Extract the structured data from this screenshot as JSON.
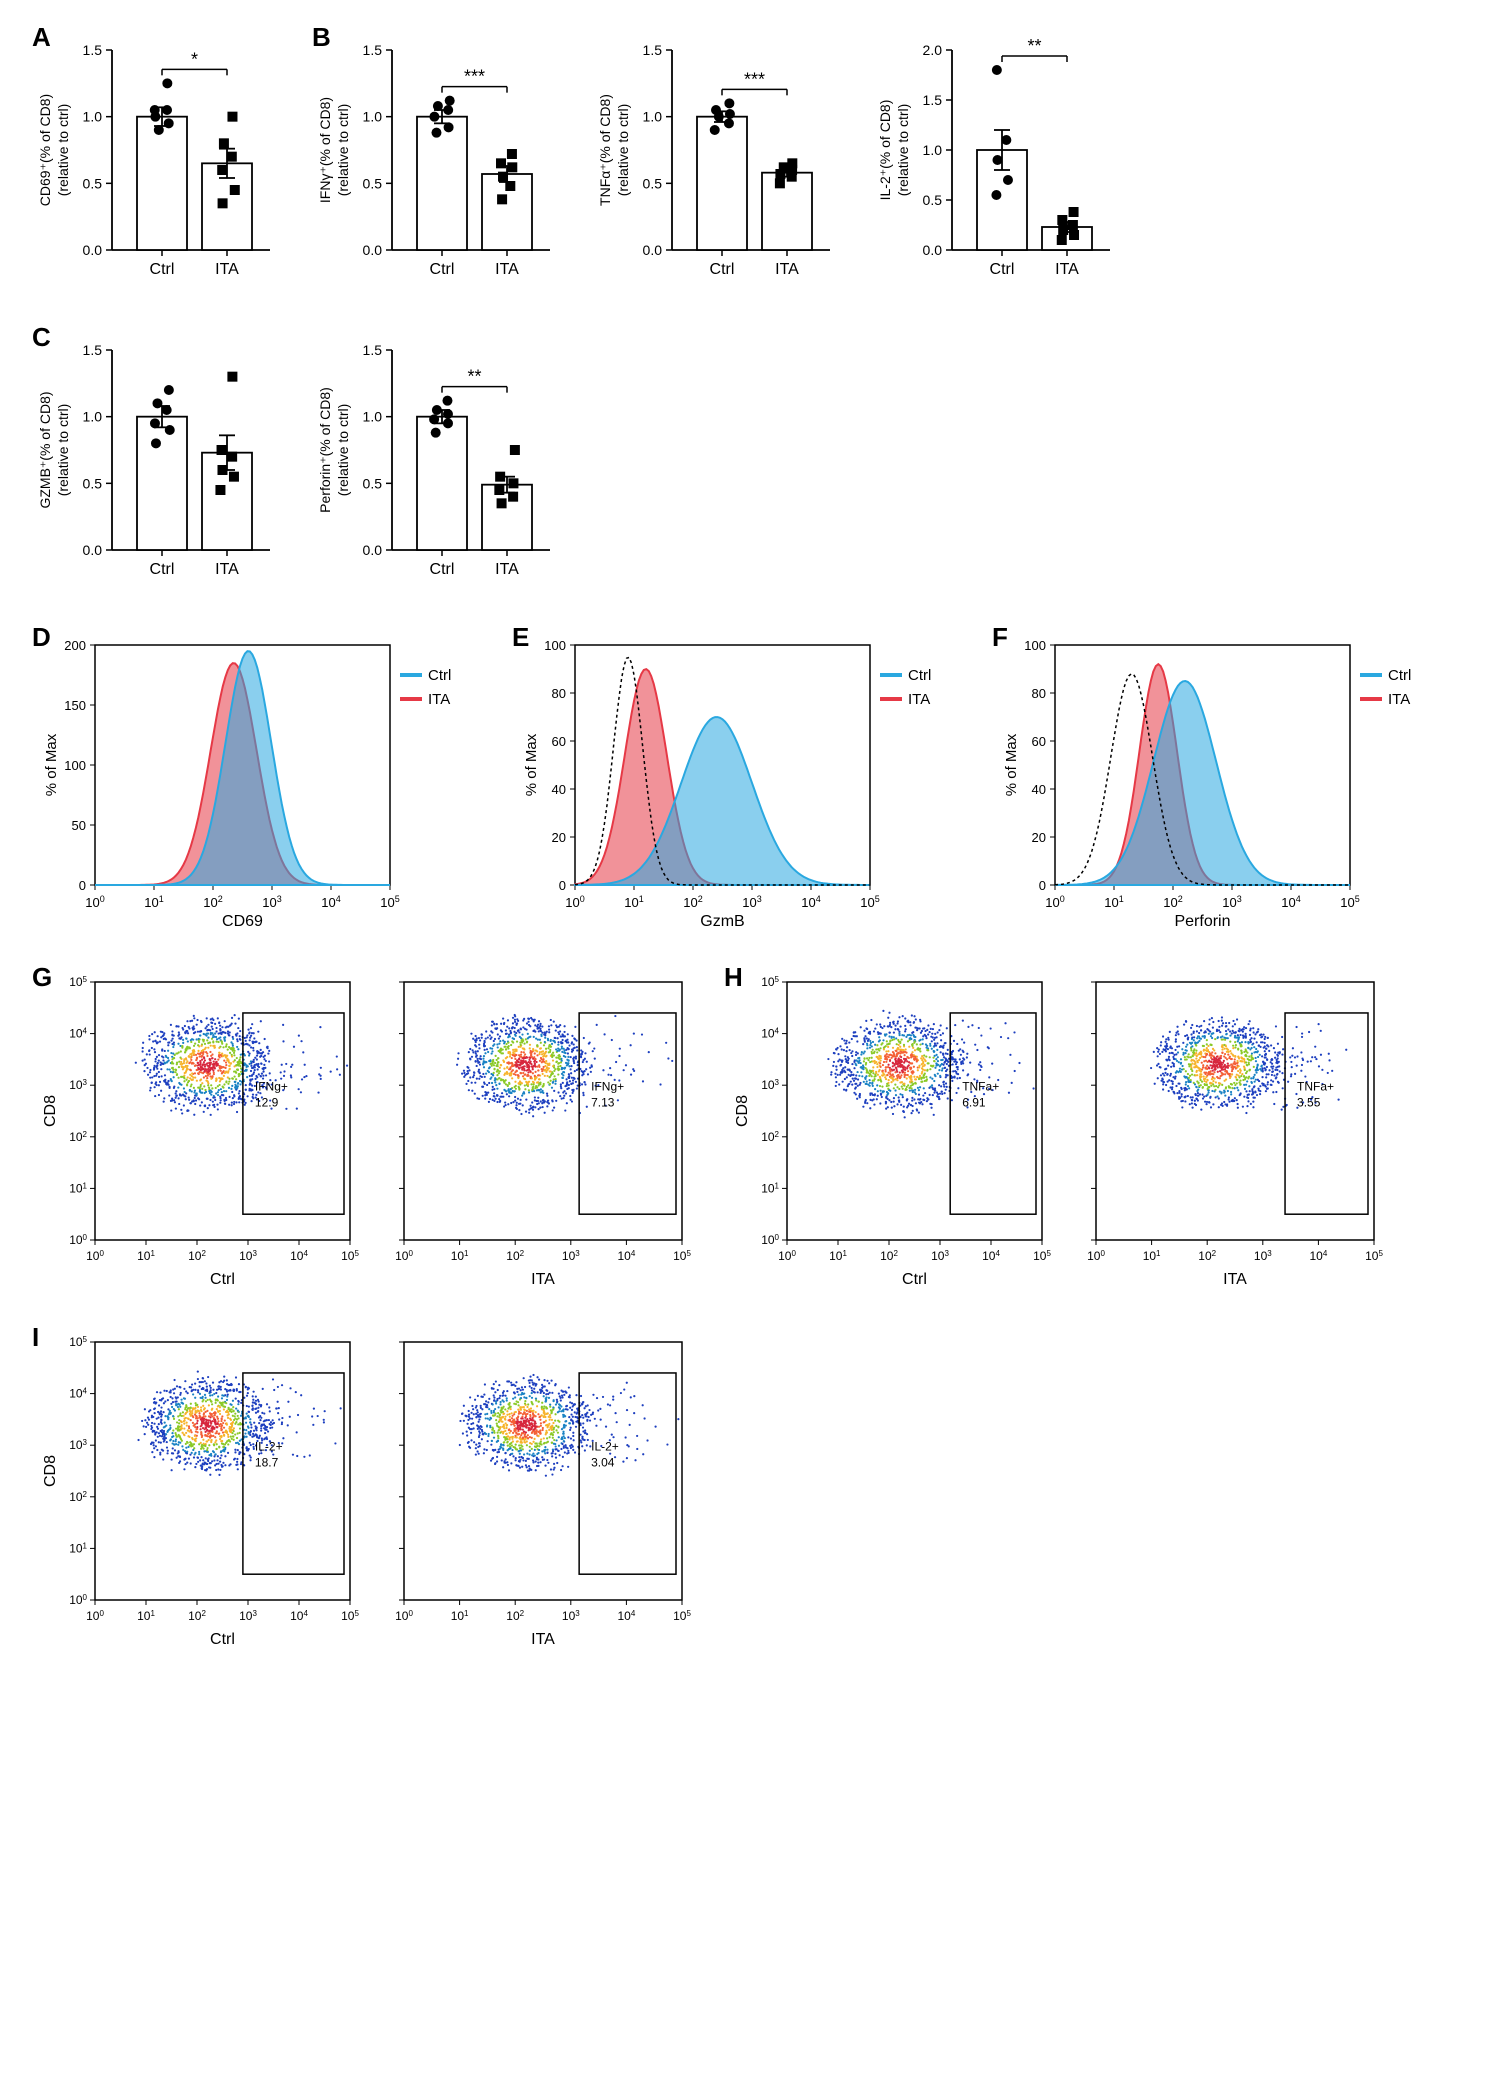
{
  "colors": {
    "ctrl": "#2aa8e0",
    "ita": "#e63946",
    "ctrl_fill": "rgba(42,168,224,0.55)",
    "ita_fill": "rgba(230,57,70,0.55)",
    "black": "#000000",
    "bar_fill": "#ffffff",
    "bar_stroke": "#000000"
  },
  "bars": {
    "A": {
      "y": "CD69⁺(% of CD8)\n(relative to ctrl)",
      "ymax": 1.5,
      "ticks": [
        0,
        0.5,
        1.0,
        1.5
      ],
      "ctrl": {
        "mean": 1.0,
        "sem": 0.07,
        "pts": [
          0.9,
          0.95,
          1.0,
          1.05,
          1.05,
          1.25
        ]
      },
      "ita": {
        "mean": 0.65,
        "sem": 0.11,
        "pts": [
          0.35,
          0.45,
          0.6,
          0.7,
          0.8,
          1.0
        ]
      },
      "sig": "*"
    },
    "B1": {
      "y": "IFNγ⁺(% of CD8)\n(relative to ctrl)",
      "ymax": 1.5,
      "ticks": [
        0,
        0.5,
        1.0,
        1.5
      ],
      "ctrl": {
        "mean": 1.0,
        "sem": 0.05,
        "pts": [
          0.88,
          0.92,
          1.0,
          1.05,
          1.08,
          1.12
        ]
      },
      "ita": {
        "mean": 0.57,
        "sem": 0.06,
        "pts": [
          0.38,
          0.48,
          0.55,
          0.62,
          0.65,
          0.72
        ]
      },
      "sig": "***"
    },
    "B2": {
      "y": "TNFα⁺(% of CD8)\n(relative to ctrl)",
      "ymax": 1.5,
      "ticks": [
        0,
        0.5,
        1.0,
        1.5
      ],
      "ctrl": {
        "mean": 1.0,
        "sem": 0.04,
        "pts": [
          0.9,
          0.95,
          1.0,
          1.02,
          1.05,
          1.1
        ]
      },
      "ita": {
        "mean": 0.58,
        "sem": 0.03,
        "pts": [
          0.5,
          0.55,
          0.57,
          0.6,
          0.62,
          0.65
        ]
      },
      "sig": "***"
    },
    "B3": {
      "y": "IL-2⁺(% of CD8)\n(relative to ctrl)",
      "ymax": 2.0,
      "ticks": [
        0,
        0.5,
        1.0,
        1.5,
        2.0
      ],
      "ctrl": {
        "mean": 1.0,
        "sem": 0.2,
        "pts": [
          0.55,
          0.7,
          0.9,
          1.1,
          1.8
        ]
      },
      "ita": {
        "mean": 0.23,
        "sem": 0.05,
        "pts": [
          0.1,
          0.15,
          0.2,
          0.25,
          0.3,
          0.38
        ]
      },
      "sig": "**"
    },
    "C1": {
      "y": "GZMB⁺(% of CD8)\n(relative to ctrl)",
      "ymax": 1.5,
      "ticks": [
        0,
        0.5,
        1.0,
        1.5
      ],
      "ctrl": {
        "mean": 1.0,
        "sem": 0.08,
        "pts": [
          0.8,
          0.9,
          0.95,
          1.05,
          1.1,
          1.2
        ]
      },
      "ita": {
        "mean": 0.73,
        "sem": 0.13,
        "pts": [
          0.45,
          0.55,
          0.6,
          0.7,
          0.75,
          1.3
        ]
      },
      "sig": ""
    },
    "C2": {
      "y": "Perforin⁺(% of CD8)\n(relative to ctrl)",
      "ymax": 1.5,
      "ticks": [
        0,
        0.5,
        1.0,
        1.5
      ],
      "ctrl": {
        "mean": 1.0,
        "sem": 0.05,
        "pts": [
          0.88,
          0.95,
          0.98,
          1.02,
          1.05,
          1.12
        ]
      },
      "ita": {
        "mean": 0.49,
        "sem": 0.06,
        "pts": [
          0.35,
          0.4,
          0.45,
          0.5,
          0.55,
          0.75
        ]
      },
      "sig": "**"
    }
  },
  "histograms": {
    "D": {
      "xlabel": "CD69",
      "show_isotype": false
    },
    "E": {
      "xlabel": "GzmB",
      "show_isotype": true
    },
    "F": {
      "xlabel": "Perforin",
      "show_isotype": true
    }
  },
  "flows": {
    "G": {
      "marker": "IFNg+",
      "ctrl_val": "12.9",
      "ita_val": "7.13"
    },
    "H": {
      "marker": "TNFa+",
      "ctrl_val": "6.91",
      "ita_val": "3.55"
    },
    "I": {
      "marker": "IL-2+",
      "ctrl_val": "18.7",
      "ita_val": "3.04"
    }
  },
  "labels": {
    "ctrl": "Ctrl",
    "ita": "ITA",
    "cd8": "CD8",
    "pctmax": "% of Max"
  }
}
